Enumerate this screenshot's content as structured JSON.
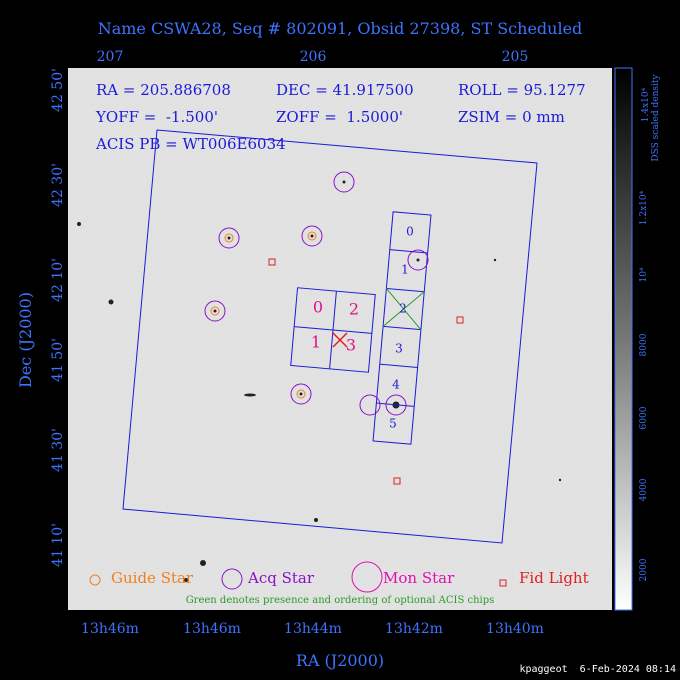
{
  "title": "Name CSWA28, Seq # 802091, Obsid 27398, ST Scheduled",
  "top_axis": [
    "207",
    "206",
    "205"
  ],
  "left_axis": [
    "42 50'",
    "42 30'",
    "42 10'",
    "41 50'",
    "41 30'",
    "41 10'"
  ],
  "bottom_axis": [
    "13h46m",
    "13h46m",
    "13h44m",
    "13h42m",
    "13h40m"
  ],
  "x_axis_title": "RA (J2000)",
  "y_axis_title": "Dec (J2000)",
  "info": {
    "ra": "RA = 205.886708",
    "dec": "DEC = 41.917500",
    "roll": "ROLL = 95.1277",
    "yoff": "YOFF =  -1.500'",
    "zoff": "ZOFF =  1.5000'",
    "zsim": "ZSIM = 0 mm",
    "acis": "ACIS PB = WT006E6034"
  },
  "acis_i_chips": [
    "0",
    "2",
    "1",
    "3"
  ],
  "acis_s_chips": [
    "0",
    "1",
    "2",
    "3",
    "4",
    "5"
  ],
  "legend": [
    "Guide Star",
    "Acq Star",
    "Mon Star",
    "Fid Light"
  ],
  "note": "Green denotes presence and ordering of optional ACIS chips",
  "colorbar": {
    "title": "1.4x10⁴",
    "subtitle": "DSS scaled density",
    "labels": [
      "1.2x10⁴",
      "10⁴",
      "8000",
      "6000",
      "4000",
      "2000"
    ]
  },
  "footer": "kpaggeot  6-Feb-2024 08:14"
}
